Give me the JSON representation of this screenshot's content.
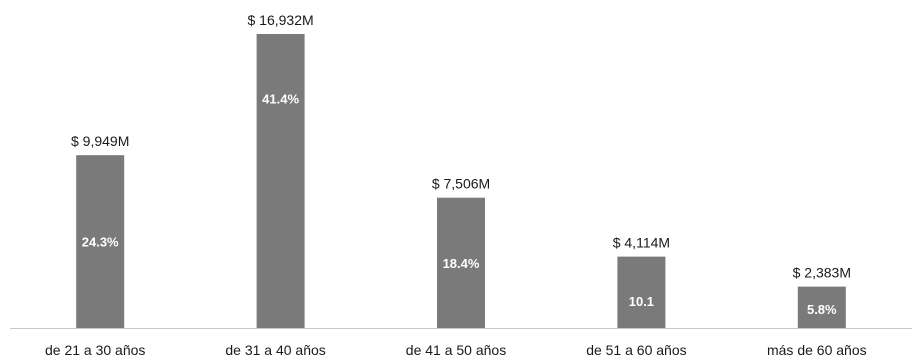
{
  "chart_data": {
    "type": "bar",
    "categories": [
      "de 21 a 30 años",
      "de 31 a 40 años",
      "de 41 a 50 años",
      "de 51 a 60 años",
      "más de 60 años"
    ],
    "values": [
      9949,
      16932,
      7506,
      4114,
      2383
    ],
    "value_labels": [
      "$ 9,949M",
      "$ 16,932M",
      "$ 7,506M",
      "$ 4,114M",
      "$ 2,383M"
    ],
    "share_labels": [
      "24.3%",
      "41.4%",
      "18.4%",
      "10.1",
      "5.8%"
    ],
    "share_values": [
      24.3,
      41.4,
      18.4,
      10.1,
      5.8
    ],
    "title": "",
    "xlabel": "",
    "ylabel": "",
    "ylim": [
      0,
      17500
    ],
    "grid": false,
    "legend": "none",
    "bar_color": "#7a7a7a",
    "axis_color": "#c8c8c8"
  }
}
